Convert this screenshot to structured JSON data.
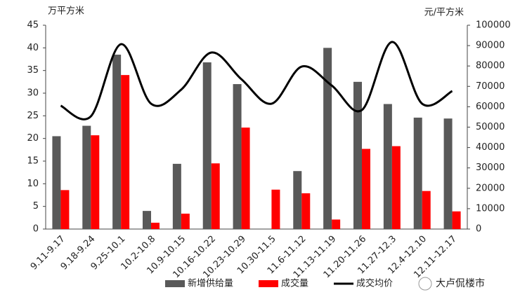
{
  "chart_data": {
    "type": "bar-line",
    "y_label": "万平方米",
    "y2_label": "元/平方米",
    "categories": [
      "9.11-9.17",
      "9.18-9.24",
      "9.25-10.1",
      "10.2-10.8",
      "10.9-10.15",
      "10.16-10.22",
      "10.23-10.29",
      "10.30-11.5",
      "11.6-11.12",
      "11.13-11.19",
      "11.20-11.26",
      "11.27-12.3",
      "12.4-12.10",
      "12.11-12.17"
    ],
    "series": [
      {
        "name": "新增供给量",
        "type": "bar",
        "color": "#595959",
        "values": [
          20.5,
          22.8,
          38.5,
          4,
          14.4,
          36.8,
          32,
          0,
          12.8,
          40,
          32.5,
          27.6,
          24.6,
          24.4
        ]
      },
      {
        "name": "成交量",
        "type": "bar",
        "color": "#ff0000",
        "values": [
          8.6,
          20.7,
          34,
          1.4,
          3.4,
          14.5,
          22.4,
          8.7,
          7.9,
          2.1,
          17.7,
          18.3,
          8.4,
          3.9
        ]
      },
      {
        "name": "成交均价",
        "type": "line",
        "axis": "y2",
        "color": "#000000",
        "values": [
          60500,
          55300,
          90700,
          61500,
          68400,
          86600,
          73500,
          61500,
          79700,
          70400,
          58400,
          91800,
          61500,
          67700
        ]
      }
    ],
    "ylim": [
      0,
      45
    ],
    "yticks": [
      0,
      5,
      10,
      15,
      20,
      25,
      30,
      35,
      40,
      45
    ],
    "y2lim": [
      0,
      100000
    ],
    "y2ticks": [
      0,
      10000,
      20000,
      30000,
      40000,
      50000,
      60000,
      70000,
      80000,
      90000,
      100000
    ],
    "grid": false,
    "legend": "bottom",
    "watermark": "大卢侃楼市"
  }
}
